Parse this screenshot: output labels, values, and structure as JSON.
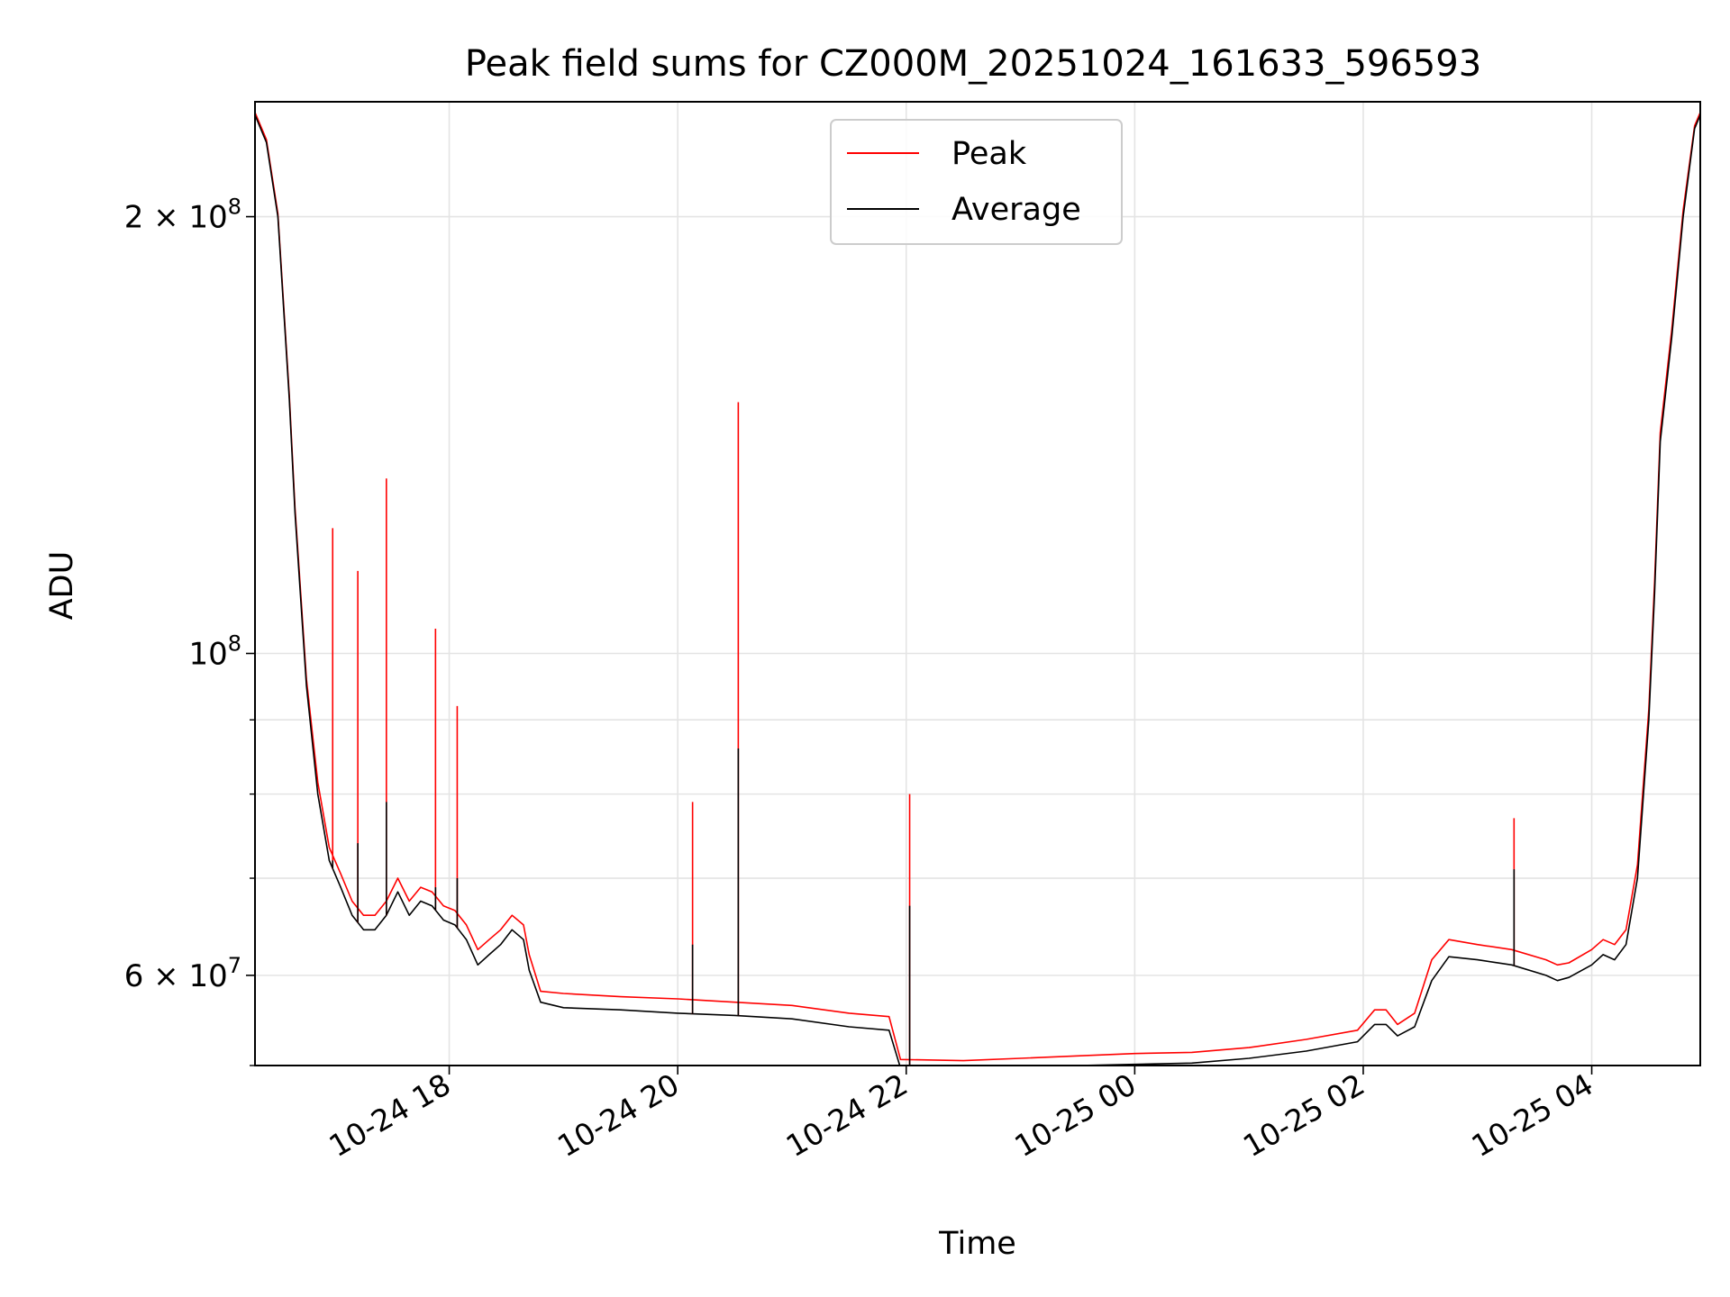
{
  "chart_data": {
    "type": "line",
    "title": "Peak field sums for CZ000M_20251024_161633_596593",
    "xlabel": "Time",
    "ylabel": "ADU",
    "yscale": "log",
    "xlim_hours": [
      16.3,
      28.95
    ],
    "ylim": [
      52000000,
      240000000
    ],
    "grid": true,
    "legend_position": "top-center",
    "x_ticks": [
      {
        "hour": 18,
        "label": "10-24 18"
      },
      {
        "hour": 20,
        "label": "10-24 20"
      },
      {
        "hour": 22,
        "label": "10-24 22"
      },
      {
        "hour": 24,
        "label": "10-25 00"
      },
      {
        "hour": 26,
        "label": "10-25 02"
      },
      {
        "hour": 28,
        "label": "10-25 04"
      }
    ],
    "y_major_ticks": [
      {
        "value": 200000000,
        "mantissa": "2",
        "times": "×",
        "base": "10",
        "exp": "8"
      },
      {
        "value": 100000000,
        "mantissa": "",
        "times": "",
        "base": "10",
        "exp": "8"
      },
      {
        "value": 60000000,
        "mantissa": "6",
        "times": "×",
        "base": "10",
        "exp": "7"
      }
    ],
    "y_minor_ticks": [
      52000000,
      70000000,
      80000000,
      90000000
    ],
    "series": [
      {
        "name": "Average",
        "color": "#000000",
        "hours": [
          16.3,
          16.4,
          16.5,
          16.6,
          16.65,
          16.75,
          16.85,
          16.95,
          17.05,
          17.15,
          17.25,
          17.35,
          17.45,
          17.55,
          17.65,
          17.75,
          17.85,
          17.95,
          18.05,
          18.15,
          18.25,
          18.35,
          18.45,
          18.55,
          18.65,
          18.7,
          18.8,
          19.0,
          19.5,
          20.0,
          20.5,
          21.0,
          21.5,
          21.85,
          21.95,
          22.5,
          23.0,
          23.5,
          24.0,
          24.5,
          25.0,
          25.5,
          25.95,
          26.1,
          26.2,
          26.3,
          26.45,
          26.6,
          26.75,
          27.0,
          27.3,
          27.6,
          27.7,
          27.8,
          28.0,
          28.1,
          28.2,
          28.3,
          28.4,
          28.5,
          28.55,
          28.6,
          28.7,
          28.8,
          28.9,
          28.95
        ],
        "values": [
          235000000,
          225000000,
          200000000,
          150000000,
          125000000,
          95000000,
          80000000,
          72000000,
          69000000,
          66000000,
          64500000,
          64500000,
          66000000,
          68500000,
          66000000,
          67500000,
          67000000,
          65500000,
          65000000,
          63500000,
          61000000,
          62000000,
          63000000,
          64500000,
          63500000,
          60500000,
          57500000,
          57000000,
          56800000,
          56500000,
          56300000,
          56000000,
          55300000,
          55000000,
          51800000,
          51600000,
          51800000,
          52000000,
          52100000,
          52200000,
          52600000,
          53200000,
          54000000,
          55500000,
          55500000,
          54500000,
          55300000,
          59500000,
          61800000,
          61500000,
          61000000,
          60000000,
          59500000,
          59800000,
          61000000,
          62000000,
          61500000,
          63000000,
          70000000,
          90000000,
          110000000,
          140000000,
          165000000,
          200000000,
          230000000,
          235000000
        ]
      },
      {
        "name": "Peak",
        "color": "#ff0000",
        "hours": [
          16.3,
          16.4,
          16.5,
          16.6,
          16.65,
          16.75,
          16.85,
          16.95,
          17.05,
          17.15,
          17.25,
          17.35,
          17.45,
          17.55,
          17.65,
          17.75,
          17.85,
          17.95,
          18.05,
          18.15,
          18.25,
          18.35,
          18.45,
          18.55,
          18.65,
          18.7,
          18.8,
          19.0,
          19.5,
          20.0,
          20.5,
          21.0,
          21.5,
          21.85,
          21.95,
          22.5,
          23.0,
          23.5,
          24.0,
          24.5,
          25.0,
          25.5,
          25.95,
          26.1,
          26.2,
          26.3,
          26.45,
          26.6,
          26.75,
          27.0,
          27.3,
          27.6,
          27.7,
          27.8,
          28.0,
          28.1,
          28.2,
          28.3,
          28.4,
          28.5,
          28.55,
          28.6,
          28.7,
          28.8,
          28.9,
          28.95
        ],
        "values": [
          236000000,
          226000000,
          201000000,
          151000000,
          126000000,
          96000000,
          81500000,
          73500000,
          70500000,
          67500000,
          66000000,
          66000000,
          67500000,
          70000000,
          67500000,
          69000000,
          68500000,
          67000000,
          66500000,
          65000000,
          62500000,
          63500000,
          64500000,
          66000000,
          65000000,
          62000000,
          58500000,
          58300000,
          58000000,
          57800000,
          57500000,
          57200000,
          56500000,
          56200000,
          52500000,
          52400000,
          52600000,
          52800000,
          53000000,
          53100000,
          53500000,
          54200000,
          55000000,
          56800000,
          56800000,
          55500000,
          56500000,
          61500000,
          63500000,
          63000000,
          62500000,
          61500000,
          61000000,
          61200000,
          62500000,
          63500000,
          63000000,
          64500000,
          71500000,
          91500000,
          112000000,
          142000000,
          167000000,
          202000000,
          231000000,
          236000000
        ]
      }
    ],
    "spikes": [
      {
        "hour": 16.98,
        "peak": 122000000,
        "average": 72000000
      },
      {
        "hour": 17.2,
        "peak": 114000000,
        "average": 74000000
      },
      {
        "hour": 17.45,
        "peak": 132000000,
        "average": 79000000
      },
      {
        "hour": 17.88,
        "peak": 104000000,
        "average": 69000000
      },
      {
        "hour": 18.07,
        "peak": 92000000,
        "average": 70000000
      },
      {
        "hour": 20.13,
        "peak": 79000000,
        "average": 63000000
      },
      {
        "hour": 20.53,
        "peak": 149000000,
        "average": 86000000
      },
      {
        "hour": 22.03,
        "peak": 80000000,
        "average": 67000000
      },
      {
        "hour": 27.32,
        "peak": 77000000,
        "average": 71000000
      }
    ]
  }
}
